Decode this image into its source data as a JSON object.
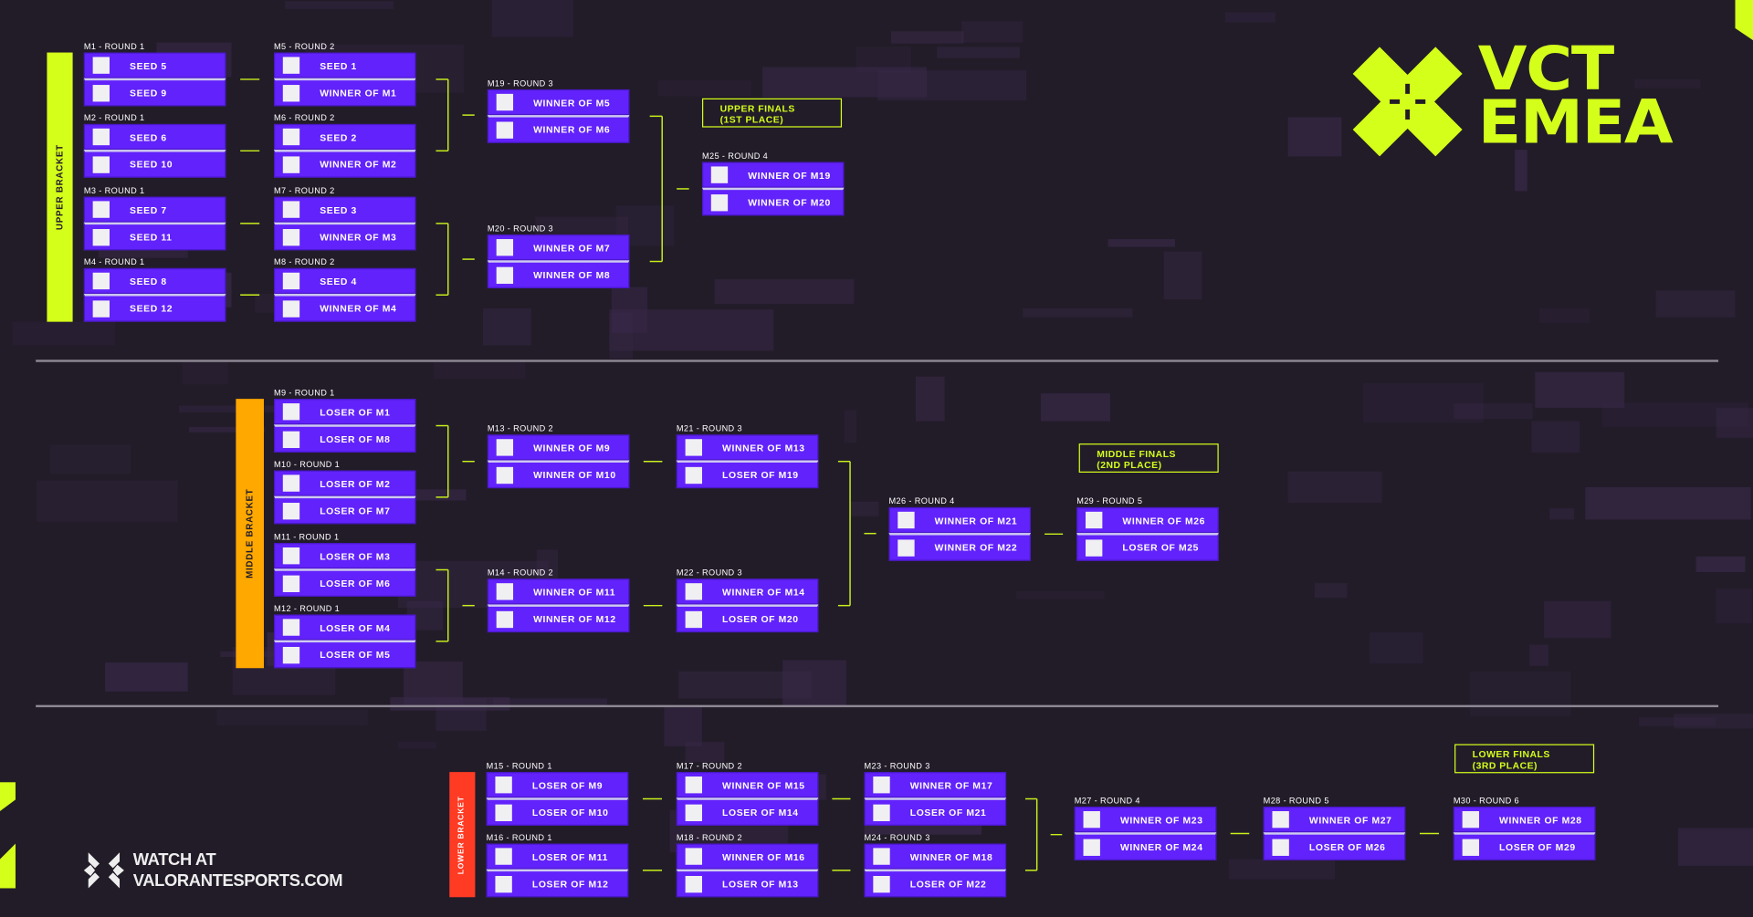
{
  "brand": {
    "line1": "VCT",
    "line2": "EMEA",
    "accent": "#d4ff1a"
  },
  "footer": {
    "line1": "WATCH AT",
    "line2": "VALORANTESPORTS.COM"
  },
  "brackets": {
    "upper": {
      "label": "UPPER BRACKET",
      "color": "#d4ff1a"
    },
    "middle": {
      "label": "MIDDLE BRACKET",
      "color": "#ffa800"
    },
    "lower": {
      "label": "LOWER BRACKET",
      "color": "#ff3b24"
    }
  },
  "finals": {
    "upper": {
      "line1": "UPPER FINALS",
      "line2": "(1ST PLACE)"
    },
    "middle": {
      "line1": "MIDDLE FINALS",
      "line2": "(2ND PLACE)"
    },
    "lower": {
      "line1": "LOWER FINALS",
      "line2": "(3RD PLACE)"
    }
  },
  "colors": {
    "match": "#6222fb",
    "background": "#221c29"
  },
  "matches": [
    {
      "label": "M1 - ROUND 1",
      "slots": [
        "SEED 5",
        "SEED 9"
      ]
    },
    {
      "label": "M2 - ROUND 1",
      "slots": [
        "SEED 6",
        "SEED 10"
      ]
    },
    {
      "label": "M3 - ROUND 1",
      "slots": [
        "SEED 7",
        "SEED 11"
      ]
    },
    {
      "label": "M4 - ROUND 1",
      "slots": [
        "SEED 8",
        "SEED 12"
      ]
    },
    {
      "label": "M5 - ROUND 2",
      "slots": [
        "SEED 1",
        "WINNER OF M1"
      ]
    },
    {
      "label": "M6 - ROUND 2",
      "slots": [
        "SEED 2",
        "WINNER OF M2"
      ]
    },
    {
      "label": "M7 - ROUND 2",
      "slots": [
        "SEED 3",
        "WINNER OF M3"
      ]
    },
    {
      "label": "M8 - ROUND 2",
      "slots": [
        "SEED 4",
        "WINNER OF M4"
      ]
    },
    {
      "label": "M19 - ROUND 3",
      "slots": [
        "WINNER OF M5",
        "WINNER OF M6"
      ]
    },
    {
      "label": "M20 - ROUND 3",
      "slots": [
        "WINNER OF M7",
        "WINNER OF M8"
      ]
    },
    {
      "label": "M25 - ROUND 4",
      "slots": [
        "WINNER OF M19",
        "WINNER OF M20"
      ]
    },
    {
      "label": "M9 - ROUND 1",
      "slots": [
        "LOSER OF M1",
        "LOSER OF M8"
      ]
    },
    {
      "label": "M10 - ROUND 1",
      "slots": [
        "LOSER OF M2",
        "LOSER OF M7"
      ]
    },
    {
      "label": "M11 - ROUND 1",
      "slots": [
        "LOSER OF M3",
        "LOSER OF M6"
      ]
    },
    {
      "label": "M12 - ROUND 1",
      "slots": [
        "LOSER OF M4",
        "LOSER OF M5"
      ]
    },
    {
      "label": "M13 - ROUND 2",
      "slots": [
        "WINNER OF M9",
        "WINNER OF M10"
      ]
    },
    {
      "label": "M14 - ROUND 2",
      "slots": [
        "WINNER OF M11",
        "WINNER OF M12"
      ]
    },
    {
      "label": "M21 - ROUND 3",
      "slots": [
        "WINNER OF M13",
        "LOSER OF M19"
      ]
    },
    {
      "label": "M22 - ROUND 3",
      "slots": [
        "WINNER OF M14",
        "LOSER OF M20"
      ]
    },
    {
      "label": "M26 - ROUND 4",
      "slots": [
        "WINNER OF M21",
        "WINNER OF M22"
      ]
    },
    {
      "label": "M29 - ROUND 5",
      "slots": [
        "WINNER OF M26",
        "LOSER OF M25"
      ]
    },
    {
      "label": "M15 - ROUND 1",
      "slots": [
        "LOSER OF M9",
        "LOSER OF M10"
      ]
    },
    {
      "label": "M16 - ROUND 1",
      "slots": [
        "LOSER OF M11",
        "LOSER OF M12"
      ]
    },
    {
      "label": "M17 - ROUND 2",
      "slots": [
        "WINNER OF M15",
        "LOSER OF M14"
      ]
    },
    {
      "label": "M18 - ROUND 2",
      "slots": [
        "WINNER OF M16",
        "LOSER OF M13"
      ]
    },
    {
      "label": "M23 - ROUND 3",
      "slots": [
        "WINNER OF M17",
        "LOSER OF M21"
      ]
    },
    {
      "label": "M24 - ROUND 3",
      "slots": [
        "WINNER OF M18",
        "LOSER OF M22"
      ]
    },
    {
      "label": "M27 - ROUND 4",
      "slots": [
        "WINNER OF M23",
        "WINNER OF M24"
      ]
    },
    {
      "label": "M28 - ROUND 5",
      "slots": [
        "WINNER OF M27",
        "LOSER OF M26"
      ]
    },
    {
      "label": "M30 - ROUND 6",
      "slots": [
        "WINNER OF M28",
        "LOSER OF M29"
      ]
    }
  ]
}
